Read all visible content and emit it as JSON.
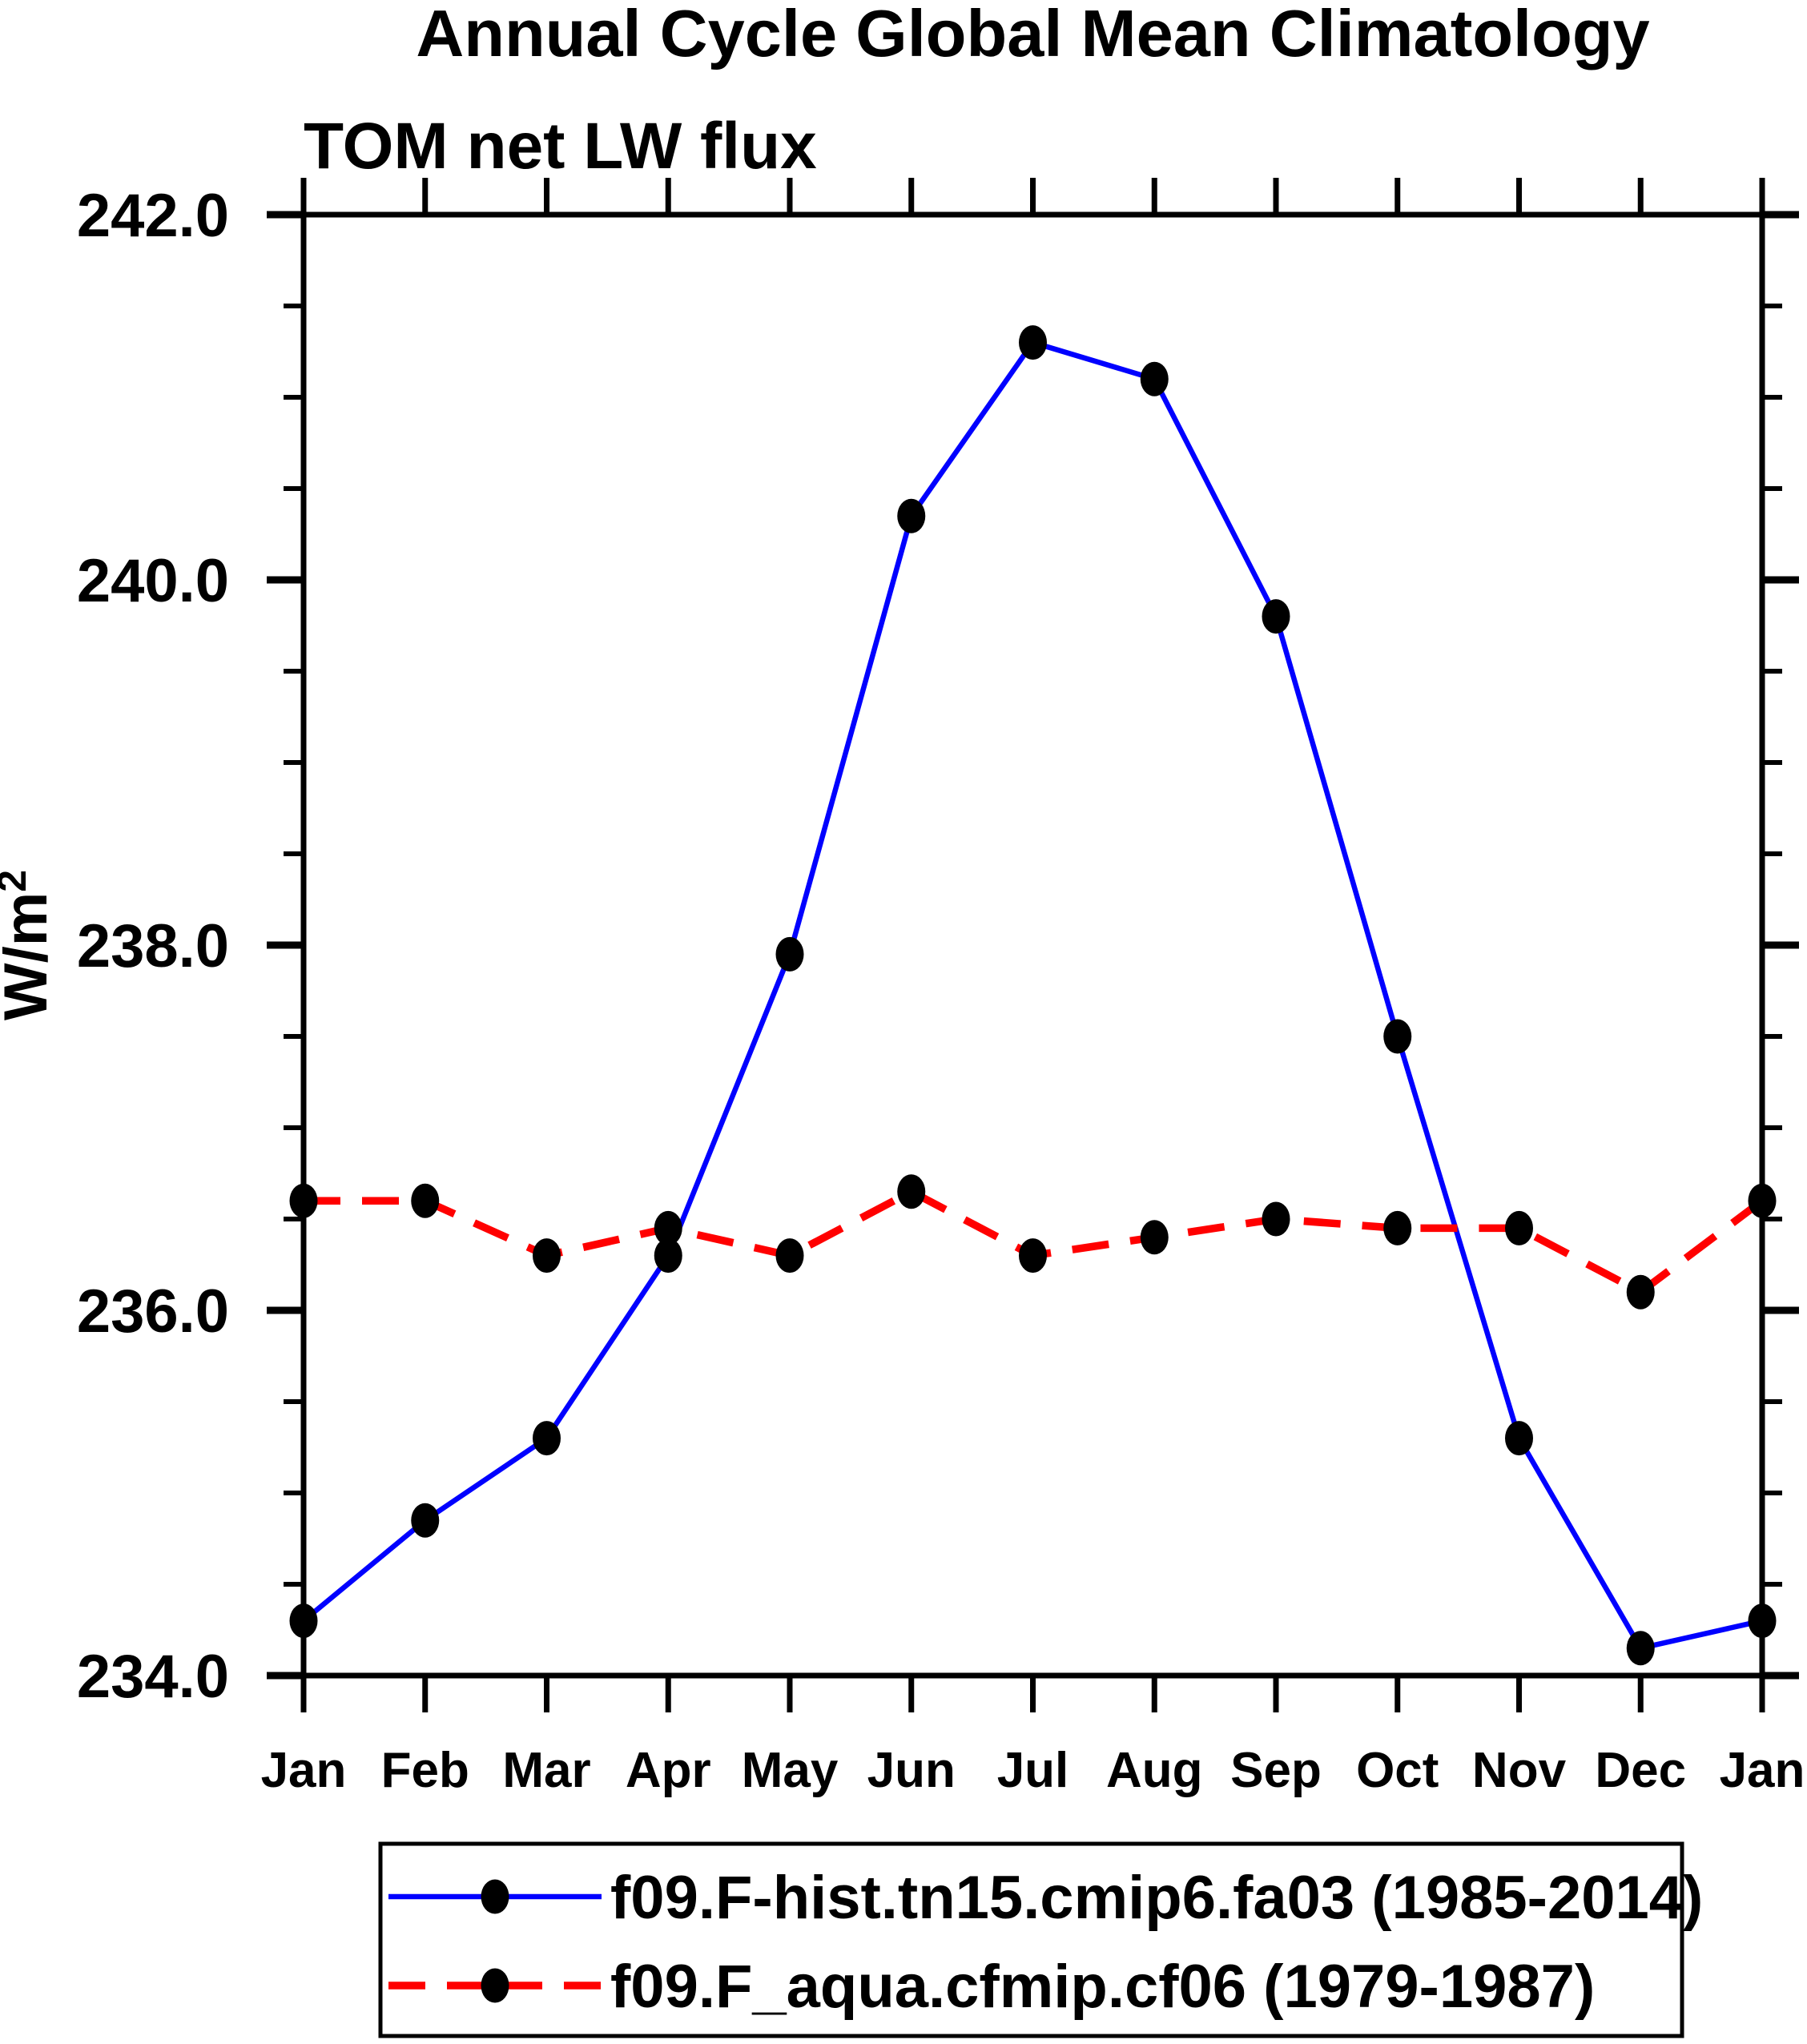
{
  "page": {
    "background": "#FFFFFF"
  },
  "chart_data": {
    "type": "line",
    "title": "Annual Cycle Global Mean Climatology",
    "subtitle": "TOM net LW flux",
    "ylabel": "W/m²",
    "xlabel": "",
    "categories": [
      "Jan",
      "Feb",
      "Mar",
      "Apr",
      "May",
      "Jun",
      "Jul",
      "Aug",
      "Sep",
      "Oct",
      "Nov",
      "Dec",
      "Jan"
    ],
    "series": [
      {
        "name": "f09.F-hist.tn15.cmip6.fa03 (1985-2014)",
        "color": "#0000FF",
        "line_style": "solid",
        "marker": "black-filled-dot",
        "values": [
          234.3,
          234.85,
          235.3,
          236.3,
          237.95,
          240.35,
          241.3,
          241.1,
          239.8,
          237.5,
          235.3,
          234.15,
          234.3
        ]
      },
      {
        "name": "f09.F_aqua.cfmip.cf06 (1979-1987)",
        "color": "#FF0000",
        "line_style": "dashed",
        "marker": "black-filled-dot",
        "values": [
          236.6,
          236.6,
          236.3,
          236.45,
          236.3,
          236.65,
          236.3,
          236.4,
          236.5,
          236.45,
          236.45,
          236.1,
          236.6
        ]
      }
    ],
    "ylim": [
      234.0,
      242.0
    ],
    "y_major_ticks": [
      {
        "value": 234.0,
        "label": "234.0"
      },
      {
        "value": 236.0,
        "label": "236.0"
      },
      {
        "value": 238.0,
        "label": "238.0"
      },
      {
        "value": 240.0,
        "label": "240.0"
      },
      {
        "value": 242.0,
        "label": "242.0"
      }
    ],
    "y_minor_step": 0.5,
    "marker_color": "#000000",
    "axis_color": "#000000",
    "grid": false,
    "legend_position": "bottom"
  }
}
